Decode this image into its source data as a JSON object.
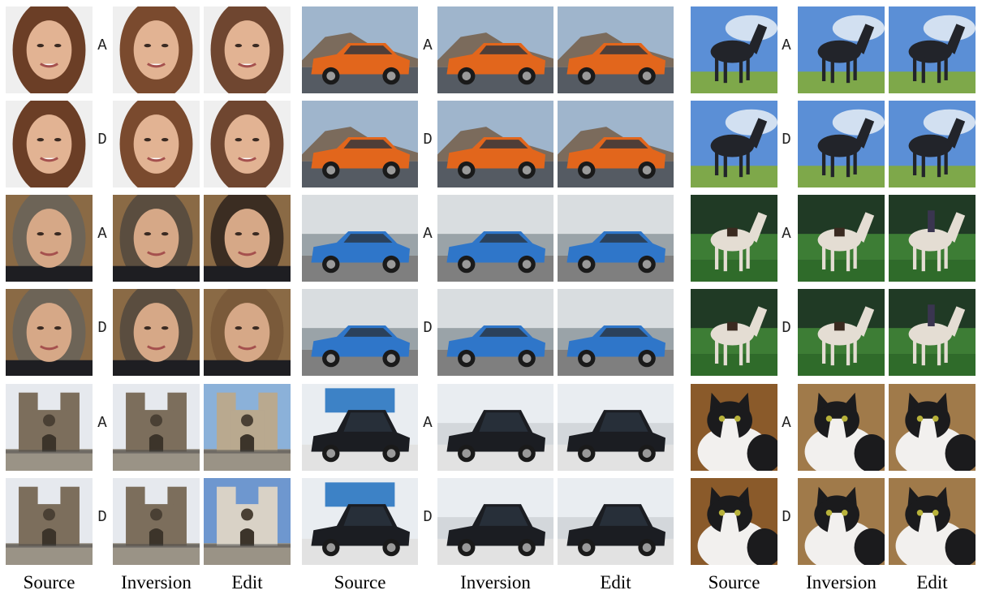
{
  "figure": {
    "groups": [
      {
        "id": "group-1",
        "column_labels": [
          "Source",
          "Inversion",
          "Edit"
        ],
        "rows": [
          {
            "label": "A",
            "subject": "face"
          },
          {
            "label": "D",
            "subject": "face"
          },
          {
            "label": "A",
            "subject": "face"
          },
          {
            "label": "D",
            "subject": "face"
          },
          {
            "label": "A",
            "subject": "cathedral"
          },
          {
            "label": "D",
            "subject": "cathedral"
          }
        ]
      },
      {
        "id": "group-2",
        "column_labels": [
          "Source",
          "Inversion",
          "Edit"
        ],
        "rows": [
          {
            "label": "A",
            "subject": "orange-car"
          },
          {
            "label": "D",
            "subject": "orange-car"
          },
          {
            "label": "A",
            "subject": "blue-car"
          },
          {
            "label": "D",
            "subject": "blue-car"
          },
          {
            "label": "A",
            "subject": "black-suv"
          },
          {
            "label": "D",
            "subject": "black-suv"
          }
        ]
      },
      {
        "id": "group-3",
        "column_labels": [
          "Source",
          "Inversion",
          "Edit"
        ],
        "rows": [
          {
            "label": "A",
            "subject": "black-horse"
          },
          {
            "label": "D",
            "subject": "black-horse"
          },
          {
            "label": "A",
            "subject": "white-horse"
          },
          {
            "label": "D",
            "subject": "white-horse"
          },
          {
            "label": "A",
            "subject": "cat"
          },
          {
            "label": "D",
            "subject": "cat"
          }
        ]
      }
    ]
  }
}
